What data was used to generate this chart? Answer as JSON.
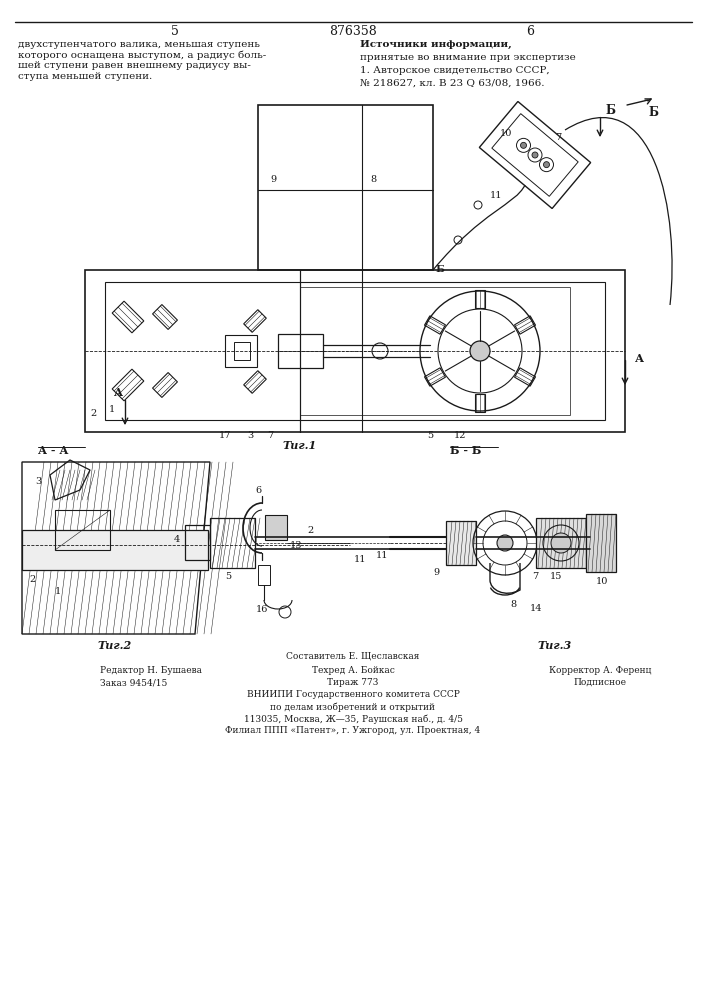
{
  "page_number_left": "5",
  "page_number_center": "876358",
  "page_number_right": "6",
  "text_left": "двухступенчатого валика, меньшая ступень\nкоторого оснащена выступом, а радиус боль-\nшей ступени равен внешнему радиусу вы-\nступа меньшей ступени.",
  "text_right_1": "Источники информации,",
  "text_right_2": "принятые во внимание при экспертизе",
  "text_right_3": "1. Авторское свидетельство СССР,",
  "text_right_4": "№ 218627, кл. В 23 Q 63/08, 1966.",
  "fig1_label": "Τиг.1",
  "fig2_label": "Τиг.2",
  "fig3_label": "Τиг.3",
  "section_aa": "А - А",
  "section_bb": "Б - Б",
  "footer_line1": "Составитель Е. Щеславская",
  "footer_line2_left": "Редактор Н. Бушаева",
  "footer_line2_center": "Техред А. Бойкас",
  "footer_line2_right": "Корректор А. Ференц",
  "footer_line3_left": "Заказ 9454/15",
  "footer_line3_center": "Тираж 773",
  "footer_line3_right": "Подписное",
  "footer_line4": "ВНИИПИ Государственного комитета СССР",
  "footer_line5": "по делам изобретений и открытий",
  "footer_line6": "113035, Москва, Ж—35, Раушская наб., д. 4/5",
  "footer_line7": "Филиал ППП «Патент», г. Ужгород, ул. Проектная, 4",
  "bg_color": "#ffffff",
  "lc": "#1a1a1a"
}
